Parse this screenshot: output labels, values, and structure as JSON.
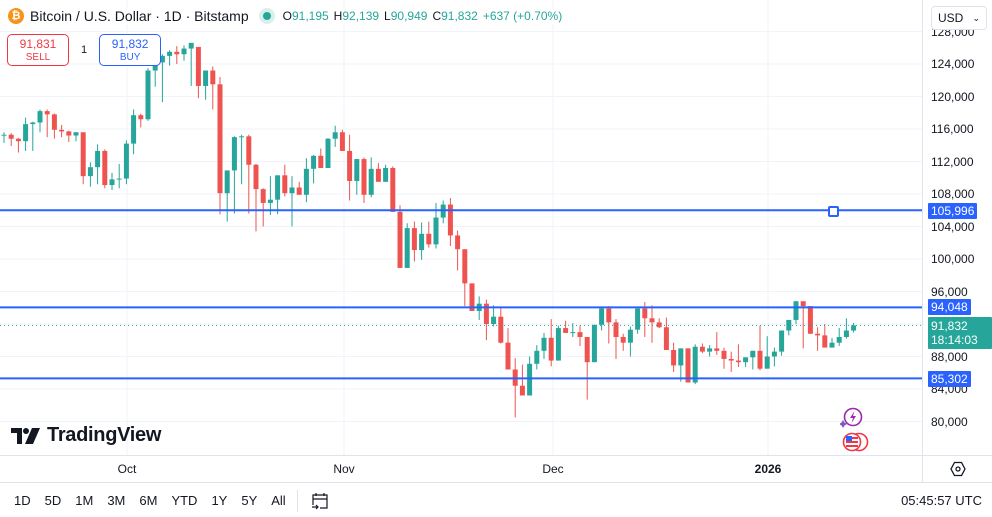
{
  "header": {
    "symbol_title": "Bitcoin / U.S. Dollar · 1D · Bitstamp",
    "open_label": "O",
    "open": "91,195",
    "high_label": "H",
    "high": "92,139",
    "low_label": "L",
    "low": "90,949",
    "close_label": "C",
    "close": "91,832",
    "change": "+637 (+0.70%)",
    "btc_icon": "bitcoin-icon"
  },
  "trade": {
    "sell_price": "91,831",
    "sell_label": "SELL",
    "quantity": "1",
    "buy_price": "91,832",
    "buy_label": "BUY"
  },
  "price_axis": {
    "currency": "USD",
    "ticks": [
      "128,000",
      "124,000",
      "120,000",
      "116,000",
      "112,000",
      "108,000",
      "104,000",
      "100,000",
      "96,000",
      "88,000",
      "84,000",
      "80,000"
    ],
    "tags": {
      "line1": "105,996",
      "line2": "94,048",
      "line3": "85,302",
      "current_price": "91,832",
      "countdown": "18:14:03"
    }
  },
  "time_axis": {
    "labels": [
      "Oct",
      "Nov",
      "Dec",
      "2026"
    ]
  },
  "bottom_bar": {
    "ranges": [
      "1D",
      "5D",
      "1M",
      "3M",
      "6M",
      "YTD",
      "1Y",
      "5Y",
      "All"
    ],
    "clock": "05:45:57 UTC"
  },
  "branding": {
    "logo_text": "TradingView"
  },
  "colors": {
    "up": "#26a69a",
    "down": "#ef5350",
    "hline": "#2962ff",
    "sell": "#f23645",
    "buy": "#2962ff"
  },
  "chart_data": {
    "type": "candlestick",
    "title": "Bitcoin / U.S. Dollar · 1D · Bitstamp",
    "xlabel": "",
    "ylabel": "USD",
    "ylim": [
      77000,
      128500
    ],
    "x_tick_labels": [
      "Oct",
      "Nov",
      "Dec",
      "2026"
    ],
    "y_tick_labels": [
      80000,
      84000,
      88000,
      96000,
      100000,
      104000,
      108000,
      112000,
      116000,
      120000,
      124000,
      128000
    ],
    "horizontal_lines": [
      105996,
      94048,
      85302
    ],
    "last_price": 91832,
    "last_ohlc": {
      "open": 91195,
      "high": 92139,
      "low": 90949,
      "close": 91832
    },
    "candles": [
      [
        115200,
        115600,
        114300,
        115300
      ],
      [
        115300,
        115500,
        113900,
        114800
      ],
      [
        114800,
        114900,
        113100,
        114500
      ],
      [
        114500,
        117400,
        113300,
        116600
      ],
      [
        116600,
        116900,
        113300,
        116800
      ],
      [
        116800,
        118400,
        115600,
        118200
      ],
      [
        118200,
        118400,
        115000,
        117800
      ],
      [
        117800,
        117900,
        114800,
        115900
      ],
      [
        115900,
        116500,
        115000,
        115700
      ],
      [
        115700,
        115800,
        114400,
        115200
      ],
      [
        115200,
        115600,
        114500,
        115600
      ],
      [
        115600,
        114600,
        109200,
        110200
      ],
      [
        110200,
        111900,
        108900,
        111300
      ],
      [
        111300,
        114100,
        109200,
        113300
      ],
      [
        113300,
        113500,
        108700,
        109100
      ],
      [
        109100,
        110600,
        108500,
        109800
      ],
      [
        109800,
        111700,
        108700,
        109900
      ],
      [
        109900,
        114600,
        109200,
        114200
      ],
      [
        114200,
        118400,
        112900,
        117700
      ],
      [
        117700,
        117900,
        116200,
        117200
      ],
      [
        117200,
        123500,
        117000,
        123200
      ],
      [
        123200,
        124900,
        121200,
        124200
      ],
      [
        124200,
        125200,
        119300,
        125000
      ],
      [
        125000,
        125700,
        123800,
        125500
      ],
      [
        125500,
        126200,
        124000,
        125200
      ],
      [
        125200,
        126300,
        124400,
        125900
      ],
      [
        125900,
        126200,
        121300,
        126600
      ],
      [
        126100,
        126100,
        119800,
        121300
      ],
      [
        121300,
        121700,
        119600,
        123200
      ],
      [
        123200,
        123700,
        118400,
        121500
      ],
      [
        121500,
        122400,
        105500,
        108100
      ],
      [
        108100,
        108800,
        104600,
        110900
      ],
      [
        110900,
        115100,
        105600,
        115000
      ],
      [
        115000,
        115300,
        109200,
        115100
      ],
      [
        115100,
        115300,
        105600,
        111600
      ],
      [
        111600,
        111700,
        103400,
        108600
      ],
      [
        108600,
        108700,
        104000,
        106900
      ],
      [
        106900,
        110200,
        105400,
        107300
      ],
      [
        107300,
        110300,
        105500,
        110300
      ],
      [
        110300,
        111600,
        107700,
        108100
      ],
      [
        108100,
        110200,
        104000,
        108800
      ],
      [
        108800,
        109500,
        108100,
        107900
      ],
      [
        107900,
        112400,
        107000,
        111100
      ],
      [
        111100,
        112800,
        109300,
        112700
      ],
      [
        112700,
        113600,
        111500,
        111200
      ],
      [
        111200,
        114900,
        112000,
        114800
      ],
      [
        114800,
        116400,
        113800,
        115600
      ],
      [
        115600,
        115900,
        114600,
        113300
      ],
      [
        113300,
        115300,
        107200,
        109600
      ],
      [
        109600,
        110700,
        107900,
        112300
      ],
      [
        112300,
        112500,
        106900,
        107900
      ],
      [
        107900,
        112500,
        107600,
        111100
      ],
      [
        111100,
        111800,
        109800,
        109500
      ],
      [
        109500,
        111600,
        110200,
        111200
      ],
      [
        111200,
        111400,
        107100,
        105800
      ],
      [
        105800,
        106600,
        99300,
        98900
      ],
      [
        98900,
        104400,
        99500,
        103800
      ],
      [
        103800,
        104600,
        99700,
        101100
      ],
      [
        101100,
        104500,
        99900,
        103100
      ],
      [
        103100,
        104600,
        101400,
        101800
      ],
      [
        101800,
        106900,
        101300,
        105100
      ],
      [
        105100,
        107200,
        104400,
        106700
      ],
      [
        106700,
        107500,
        101600,
        102900
      ],
      [
        102900,
        103500,
        98600,
        101200
      ],
      [
        101200,
        99400,
        94200,
        97000
      ],
      [
        97000,
        95600,
        93900,
        93600
      ],
      [
        93600,
        95400,
        92500,
        94500
      ],
      [
        94500,
        95000,
        90000,
        92000
      ],
      [
        92000,
        94300,
        91700,
        92900
      ],
      [
        92900,
        94000,
        89600,
        89700
      ],
      [
        89700,
        91500,
        86800,
        86400
      ],
      [
        86400,
        87800,
        80500,
        84400
      ],
      [
        84400,
        87000,
        83400,
        83200
      ],
      [
        83200,
        88000,
        84000,
        87100
      ],
      [
        87100,
        89400,
        86400,
        88700
      ],
      [
        88700,
        90900,
        87700,
        90300
      ],
      [
        90300,
        92600,
        86800,
        87500
      ],
      [
        87500,
        91800,
        87700,
        91500
      ],
      [
        91500,
        92400,
        91000,
        90900
      ],
      [
        90900,
        92100,
        90400,
        91000
      ],
      [
        91000,
        91800,
        89300,
        90400
      ],
      [
        90400,
        90200,
        82700,
        87300
      ],
      [
        87300,
        91800,
        88400,
        91900
      ],
      [
        91900,
        94000,
        91200,
        93900
      ],
      [
        93900,
        94200,
        89600,
        92200
      ],
      [
        92200,
        92600,
        87700,
        90400
      ],
      [
        90400,
        90800,
        88700,
        89700
      ],
      [
        89700,
        91700,
        88000,
        91300
      ],
      [
        91300,
        92900,
        90800,
        93900
      ],
      [
        93900,
        94700,
        90400,
        92700
      ],
      [
        92700,
        94300,
        89700,
        92200
      ],
      [
        92200,
        92700,
        91500,
        91600
      ],
      [
        91600,
        92800,
        89700,
        88800
      ],
      [
        88800,
        89700,
        86100,
        86900
      ],
      [
        86900,
        87700,
        84900,
        89000
      ],
      [
        89000,
        87200,
        85200,
        84800
      ],
      [
        84800,
        89500,
        84600,
        89200
      ],
      [
        89200,
        89600,
        88400,
        88600
      ],
      [
        88600,
        89400,
        88000,
        89000
      ],
      [
        89000,
        91000,
        88200,
        88700
      ],
      [
        88700,
        89100,
        86500,
        87700
      ],
      [
        87700,
        88600,
        86100,
        87500
      ],
      [
        87500,
        89500,
        86700,
        87300
      ],
      [
        87300,
        87800,
        86700,
        87900
      ],
      [
        87900,
        88300,
        86400,
        88700
      ],
      [
        88700,
        91800,
        86300,
        86500
      ],
      [
        86500,
        90500,
        86900,
        88000
      ],
      [
        88000,
        89100,
        86800,
        88600
      ],
      [
        88600,
        91000,
        88100,
        91200
      ],
      [
        91200,
        92400,
        90600,
        92500
      ],
      [
        92500,
        94800,
        92000,
        94800
      ],
      [
        94800,
        94400,
        89000,
        94200
      ],
      [
        94200,
        94100,
        91500,
        90800
      ],
      [
        90800,
        91600,
        88700,
        90600
      ],
      [
        90600,
        92000,
        89500,
        89100
      ],
      [
        89100,
        90300,
        89200,
        89700
      ],
      [
        89700,
        91500,
        89300,
        90400
      ],
      [
        90400,
        92700,
        90200,
        91200
      ],
      [
        91195,
        92139,
        90949,
        91832
      ]
    ]
  }
}
